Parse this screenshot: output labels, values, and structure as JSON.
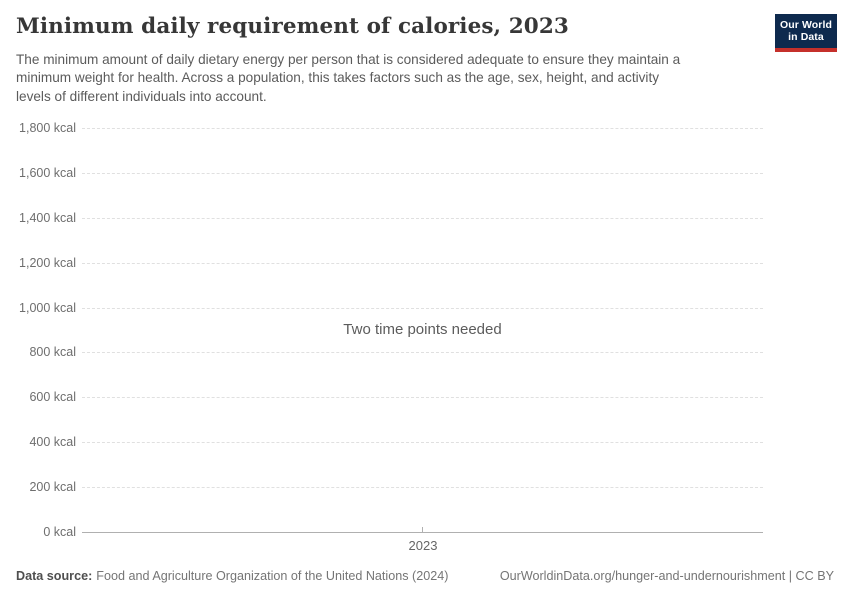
{
  "header": {
    "title": "Minimum daily requirement of calories, 2023",
    "subtitle_lines": [
      "The minimum amount of daily dietary energy per person that is considered adequate to ensure they maintain a",
      "minimum weight for health. Across a population, this takes factors such as the age, sex, height, and activity",
      "levels of different individuals into account."
    ],
    "logo": {
      "line1": "Our World",
      "line2": "in Data",
      "bg_color": "#0e2a4e",
      "bar_color": "#c5302b"
    }
  },
  "chart_data": {
    "type": "line",
    "title": "Minimum daily requirement of calories, 2023",
    "message": "Two time points needed",
    "series": [],
    "x_ticks": [
      "2023"
    ],
    "y_values": [
      0,
      200,
      400,
      600,
      800,
      1000,
      1200,
      1400,
      1600,
      1800
    ],
    "y_ticks": [
      "0 kcal",
      "200 kcal",
      "400 kcal",
      "600 kcal",
      "800 kcal",
      "1,000 kcal",
      "1,200 kcal",
      "1,400 kcal",
      "1,600 kcal",
      "1,800 kcal"
    ],
    "ylim": [
      0,
      1800
    ],
    "ylabel": "",
    "xlabel": "",
    "grid": "horizontal-dashed",
    "legend": "none"
  },
  "footer": {
    "datasource_label": "Data source:",
    "datasource_value": "Food and Agriculture Organization of the United Nations (2024)",
    "link": "OurWorldinData.org/hunger-and-undernourishment",
    "separator": " | ",
    "license": "CC BY"
  },
  "colors": {
    "title": "#373737",
    "subtitle": "#5b5b5b",
    "axis_label": "#6e6e6e",
    "gridline": "#e0e0e0",
    "axis_line": "#b0b0b0",
    "logo_navy": "#0e2a4e",
    "logo_red": "#c5302b"
  }
}
